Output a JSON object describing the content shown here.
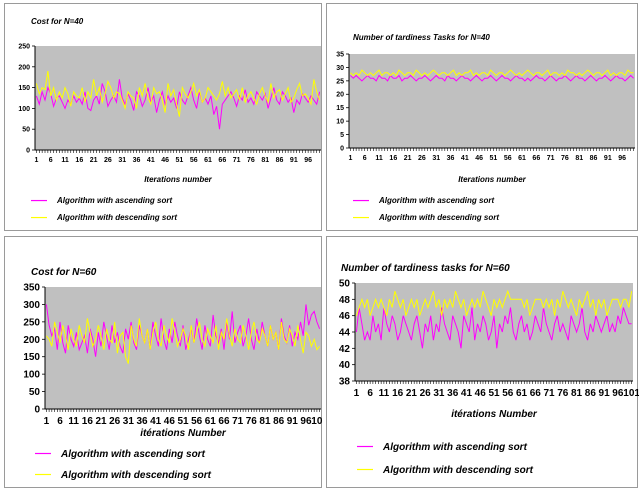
{
  "charts": [
    {
      "title": "Cost for N=40",
      "ylim": [
        0,
        250
      ],
      "yticks": [
        0,
        50,
        100,
        150,
        200,
        250
      ],
      "xtick_labels": [
        "1",
        "6",
        "11",
        "16",
        "21",
        "26",
        "31",
        "36",
        "41",
        "46",
        "51",
        "56",
        "61",
        "66",
        "71",
        "76",
        "81",
        "86",
        "91",
        "96"
      ],
      "xlabel": "Iterations number",
      "legend": [
        "Algorithm with ascending sort",
        "Algorithm with descending sort"
      ]
    },
    {
      "title": "Number of tardiness Tasks for N=40",
      "ylim": [
        0,
        35
      ],
      "yticks": [
        0,
        5,
        10,
        15,
        20,
        25,
        30,
        35
      ],
      "xtick_labels": [
        "1",
        "6",
        "11",
        "16",
        "21",
        "26",
        "31",
        "36",
        "41",
        "46",
        "51",
        "56",
        "61",
        "66",
        "71",
        "76",
        "81",
        "86",
        "91",
        "96"
      ],
      "xlabel": "Iterations number",
      "legend": [
        "Algorithm with ascending sort",
        "Algorithm with descending sort"
      ]
    },
    {
      "title": "Cost  for N=60",
      "ylim": [
        0,
        350
      ],
      "yticks": [
        0,
        50,
        100,
        150,
        200,
        250,
        300,
        350
      ],
      "xtick_labels": [
        "1",
        "6",
        "11",
        "16",
        "21",
        "26",
        "31",
        "36",
        "41",
        "46",
        "51",
        "56",
        "61",
        "66",
        "71",
        "76",
        "81",
        "86",
        "91",
        "96",
        "101"
      ],
      "xlabel": "itérations Number",
      "legend": [
        "Algorithm with ascending sort",
        "Algorithm with descending sort"
      ]
    },
    {
      "title": "Number of tardiness tasks  for  N=60",
      "ylim": [
        38,
        50
      ],
      "yticks": [
        38,
        40,
        42,
        44,
        46,
        48,
        50
      ],
      "xtick_labels": [
        "1",
        "6",
        "11",
        "16",
        "21",
        "26",
        "31",
        "36",
        "41",
        "46",
        "51",
        "56",
        "61",
        "66",
        "71",
        "76",
        "81",
        "86",
        "91",
        "96",
        "101"
      ],
      "xlabel": "itérations Number",
      "legend": [
        "Algorithm with ascending sort",
        "Algorithm with descending sort"
      ]
    }
  ],
  "chart_data": [
    {
      "type": "line",
      "title": "Cost for N=40",
      "xlabel": "Iterations number",
      "ylim": [
        0,
        250
      ],
      "x_start": 1,
      "series": [
        {
          "name": "Algorithm with ascending sort",
          "color": "#ff00ff",
          "values": [
            130,
            110,
            140,
            120,
            150,
            135,
            105,
            125,
            130,
            115,
            100,
            120,
            110,
            130,
            115,
            125,
            110,
            140,
            100,
            95,
            120,
            130,
            110,
            160,
            140,
            105,
            120,
            130,
            115,
            170,
            125,
            110,
            135,
            120,
            95,
            140,
            130,
            105,
            120,
            150,
            115,
            130,
            90,
            120,
            140,
            110,
            130,
            115,
            125,
            100,
            140,
            120,
            110,
            130,
            150,
            120,
            100,
            140,
            115,
            125,
            110,
            130,
            85,
            105,
            50,
            110,
            120,
            130,
            140,
            125,
            105,
            130,
            120,
            145,
            115,
            125,
            110,
            140,
            130,
            120,
            135,
            100,
            125,
            150,
            120,
            110,
            140,
            130,
            115,
            125,
            90,
            120,
            110,
            135,
            125,
            115,
            130,
            120,
            110,
            140
          ]
        },
        {
          "name": "Algorithm with descending sort",
          "color": "#ffff00",
          "values": [
            160,
            135,
            150,
            145,
            190,
            130,
            150,
            120,
            140,
            125,
            150,
            135,
            105,
            140,
            130,
            125,
            150,
            115,
            140,
            125,
            170,
            130,
            150,
            115,
            135,
            165,
            150,
            125,
            140,
            135,
            120,
            100,
            140,
            130,
            125,
            100,
            150,
            130,
            160,
            125,
            110,
            150,
            135,
            140,
            120,
            90,
            160,
            130,
            145,
            110,
            80,
            150,
            135,
            125,
            140,
            160,
            130,
            145,
            115,
            125,
            150,
            140,
            130,
            120,
            135,
            165,
            130,
            150,
            125,
            135,
            145,
            120,
            150,
            115,
            130,
            140,
            125,
            110,
            135,
            150,
            130,
            115,
            160,
            125,
            140,
            145,
            120,
            135,
            150,
            115,
            125,
            145,
            160,
            130,
            135,
            125,
            110,
            170,
            140,
            120
          ]
        }
      ]
    },
    {
      "type": "line",
      "title": "Number of tardiness Tasks for N=40",
      "xlabel": "Iterations number",
      "ylim": [
        0,
        35
      ],
      "x_start": 1,
      "series": [
        {
          "name": "Algorithm with ascending sort",
          "color": "#ff00ff",
          "values": [
            27,
            26,
            27,
            26,
            25,
            26,
            27,
            26,
            26,
            25,
            27,
            26,
            26,
            25,
            27,
            26,
            26,
            27,
            25,
            26,
            26,
            27,
            26,
            25,
            26,
            26,
            27,
            26,
            25,
            26,
            27,
            26,
            26,
            25,
            27,
            26,
            26,
            25,
            26,
            27,
            26,
            26,
            25,
            26,
            27,
            26,
            25,
            26,
            26,
            27,
            26,
            25,
            26,
            27,
            26,
            26,
            25,
            26,
            27,
            26,
            26,
            25,
            26,
            25,
            26,
            27,
            26,
            26,
            25,
            26,
            27,
            26,
            25,
            26,
            26,
            27,
            26,
            25,
            26,
            27,
            26,
            26,
            25,
            26,
            27,
            26,
            25,
            26,
            26,
            27,
            26,
            25,
            26,
            27,
            26,
            26,
            25,
            26,
            27,
            26
          ]
        },
        {
          "name": "Algorithm with descending sort",
          "color": "#ffff00",
          "values": [
            28,
            27,
            28,
            27,
            29,
            28,
            27,
            28,
            27,
            28,
            29,
            27,
            28,
            28,
            27,
            28,
            27,
            29,
            28,
            27,
            28,
            28,
            27,
            29,
            28,
            27,
            28,
            27,
            28,
            29,
            28,
            27,
            28,
            28,
            27,
            28,
            29,
            27,
            28,
            27,
            28,
            28,
            29,
            27,
            28,
            27,
            28,
            28,
            27,
            29,
            28,
            27,
            28,
            28,
            27,
            28,
            29,
            28,
            27,
            28,
            27,
            28,
            29,
            28,
            27,
            28,
            28,
            27,
            28,
            29,
            27,
            28,
            28,
            27,
            28,
            27,
            29,
            28,
            28,
            27,
            28,
            27,
            28,
            29,
            28,
            27,
            28,
            28,
            27,
            28,
            29,
            27,
            28,
            27,
            28,
            28,
            27,
            29,
            28,
            28
          ]
        }
      ]
    },
    {
      "type": "line",
      "title": "Cost  for N=60",
      "xlabel": "itérations Number",
      "ylim": [
        0,
        350
      ],
      "x_start": 1,
      "series": [
        {
          "name": "Algorithm with ascending sort",
          "color": "#ff00ff",
          "values": [
            300,
            240,
            210,
            230,
            170,
            250,
            190,
            160,
            240,
            200,
            180,
            220,
            170,
            190,
            210,
            160,
            230,
            200,
            150,
            220,
            180,
            250,
            210,
            170,
            240,
            190,
            220,
            180,
            160,
            230,
            200,
            250,
            190,
            170,
            240,
            210,
            190,
            230,
            170,
            250,
            210,
            180,
            260,
            200,
            170,
            230,
            190,
            250,
            210,
            180,
            240,
            170,
            200,
            230,
            190,
            260,
            210,
            170,
            240,
            200,
            180,
            270,
            210,
            190,
            230,
            170,
            250,
            200,
            280,
            190,
            220,
            240,
            180,
            210,
            260,
            200,
            170,
            230,
            190,
            250,
            210,
            180,
            240,
            200,
            220,
            170,
            260,
            210,
            190,
            240,
            180,
            220,
            200,
            250,
            210,
            300,
            240,
            270,
            280,
            250,
            230
          ]
        },
        {
          "name": "Algorithm with descending sort",
          "color": "#ffff00",
          "values": [
            210,
            200,
            180,
            250,
            220,
            190,
            240,
            210,
            170,
            230,
            200,
            180,
            240,
            210,
            190,
            260,
            220,
            180,
            200,
            240,
            210,
            170,
            230,
            200,
            190,
            250,
            160,
            210,
            220,
            150,
            130,
            240,
            200,
            180,
            260,
            210,
            190,
            230,
            170,
            220,
            250,
            200,
            180,
            240,
            210,
            190,
            260,
            220,
            180,
            200,
            230,
            210,
            170,
            240,
            190,
            220,
            250,
            200,
            180,
            230,
            210,
            190,
            240,
            170,
            220,
            200,
            260,
            210,
            180,
            230,
            200,
            190,
            240,
            210,
            170,
            220,
            250,
            200,
            190,
            230,
            210,
            180,
            240,
            200,
            220,
            170,
            250,
            200,
            190,
            230,
            210,
            180,
            240,
            200,
            160,
            220,
            210,
            180,
            200,
            170,
            180
          ]
        }
      ]
    },
    {
      "type": "line",
      "title": "Number of tardiness tasks  for  N=60",
      "xlabel": "itérations Number",
      "ylim": [
        38,
        50
      ],
      "x_start": 1,
      "series": [
        {
          "name": "Algorithm with ascending sort",
          "color": "#ff00ff",
          "values": [
            44,
            47,
            45,
            43,
            44,
            43,
            46,
            44,
            45,
            43,
            47,
            45,
            44,
            46,
            45,
            43,
            44,
            46,
            45,
            44,
            43,
            45,
            46,
            44,
            42,
            45,
            44,
            46,
            43,
            45,
            44,
            47,
            45,
            44,
            43,
            46,
            45,
            44,
            42,
            46,
            45,
            44,
            47,
            43,
            45,
            44,
            46,
            45,
            43,
            44,
            46,
            42,
            45,
            44,
            46,
            45,
            47,
            44,
            43,
            45,
            46,
            44,
            45,
            43,
            44,
            46,
            45,
            44,
            47,
            45,
            44,
            43,
            45,
            46,
            44,
            45,
            44,
            43,
            46,
            45,
            44,
            45,
            47,
            44,
            43,
            45,
            44,
            46,
            45,
            44,
            45,
            46,
            44,
            45,
            44,
            46,
            45,
            47,
            46,
            45,
            45
          ]
        },
        {
          "name": "Algorithm with descending sort",
          "color": "#ffff00",
          "values": [
            46,
            47,
            48,
            47,
            48,
            46,
            47,
            48,
            47,
            48,
            47,
            46,
            48,
            47,
            49,
            48,
            47,
            48,
            46,
            47,
            48,
            47,
            48,
            46,
            47,
            48,
            47,
            48,
            49,
            47,
            48,
            46,
            48,
            47,
            48,
            47,
            49,
            48,
            47,
            48,
            46,
            47,
            48,
            47,
            48,
            47,
            49,
            48,
            47,
            46,
            48,
            47,
            48,
            47,
            48,
            49,
            48,
            48,
            48,
            48,
            48,
            47,
            48,
            46,
            47,
            48,
            48,
            48,
            47,
            48,
            47,
            48,
            46,
            48,
            47,
            49,
            48,
            47,
            48,
            47,
            46,
            48,
            47,
            48,
            49,
            47,
            48,
            46,
            48,
            47,
            48,
            46,
            47,
            48,
            48,
            48,
            47,
            48,
            48,
            47,
            49
          ]
        }
      ]
    }
  ]
}
